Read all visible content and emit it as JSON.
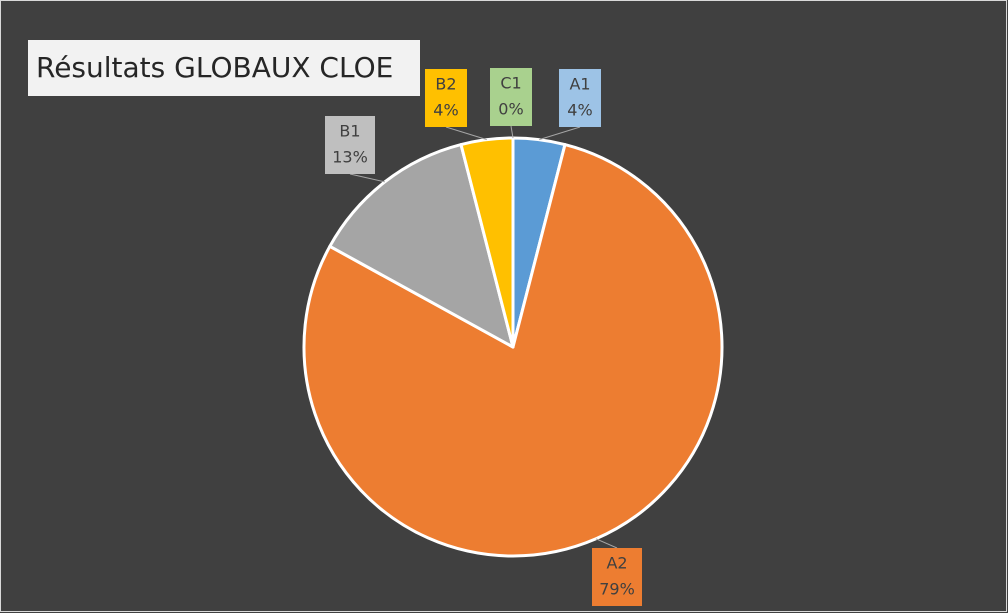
{
  "chart_data": {
    "type": "pie",
    "title": "Résultats GLOBAUX CLOE",
    "categories": [
      "A1",
      "A2",
      "B1",
      "B2",
      "C1"
    ],
    "values": [
      4,
      79,
      13,
      4,
      0
    ],
    "value_labels": [
      "4%",
      "79%",
      "13%",
      "4%",
      "0%"
    ],
    "colors": [
      "#5b9bd5",
      "#ed7d31",
      "#a5a5a5",
      "#ffc000",
      "#70ad47"
    ]
  }
}
